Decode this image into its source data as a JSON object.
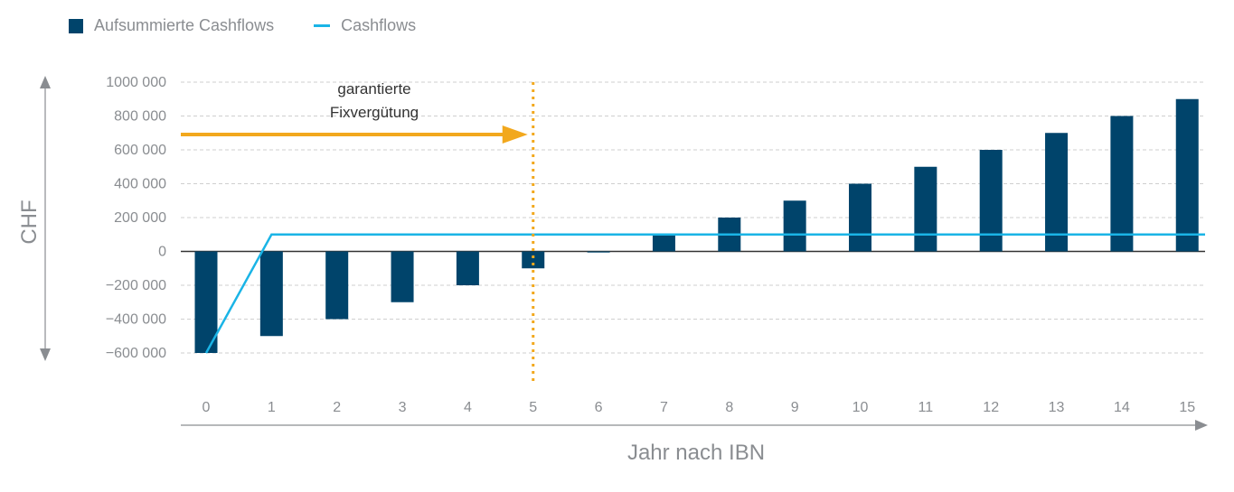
{
  "chart_data": {
    "type": "bar",
    "categories": [
      "0",
      "1",
      "2",
      "3",
      "4",
      "5",
      "6",
      "7",
      "8",
      "9",
      "10",
      "11",
      "12",
      "13",
      "14",
      "15"
    ],
    "series": [
      {
        "name": "Aufsummierte Cashflows",
        "kind": "bar",
        "values": [
          -600000,
          -500000,
          -400000,
          -300000,
          -200000,
          -100000,
          0,
          100000,
          200000,
          300000,
          400000,
          500000,
          600000,
          700000,
          800000,
          900000
        ]
      },
      {
        "name": "Cashflows",
        "kind": "line",
        "values": [
          -600000,
          100000,
          100000,
          100000,
          100000,
          100000,
          100000,
          100000,
          100000,
          100000,
          100000,
          100000,
          100000,
          100000,
          100000,
          100000
        ]
      }
    ],
    "ylim": [
      -600000,
      1000000
    ],
    "yticks": [
      1000000,
      800000,
      600000,
      400000,
      200000,
      0,
      -200000,
      -400000,
      -600000
    ],
    "ytick_labels": [
      "1000 000",
      "800 000",
      "600 000",
      "400 000",
      "200 000",
      "0",
      "−200 000",
      "−400 000",
      "−600 000"
    ],
    "xlabel": "Jahr nach IBN",
    "ylabel": "CHF",
    "annotation": {
      "text_line1": "garantierte",
      "text_line2": "Fixvergütung",
      "x_value": 5
    },
    "colors": {
      "bar": "#00446b",
      "line": "#1ab4e6",
      "annotation": "#f2a81d",
      "grid": "#cfcfcf",
      "axis": "#8a8d91",
      "zero": "#333333"
    },
    "legend_position": "top-left"
  }
}
